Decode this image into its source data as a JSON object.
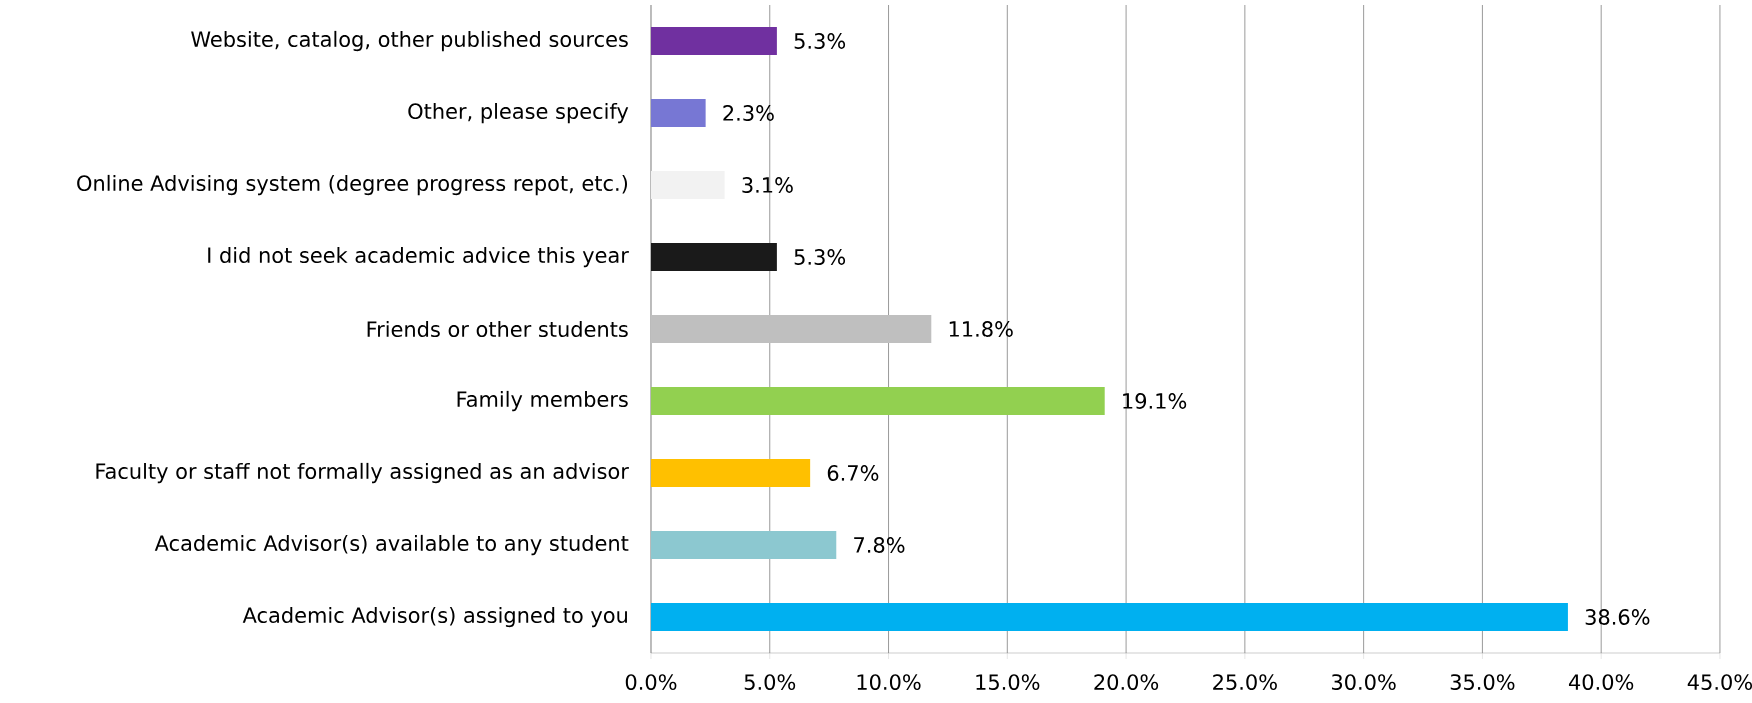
{
  "chart_data": {
    "type": "bar",
    "orientation": "horizontal",
    "categories": [
      "Website, catalog, other published sources",
      "Other, please specify",
      "Online Advising system (degree progress repot, etc.)",
      "I did not seek academic advice this year",
      "Friends or other students",
      "Family members",
      "Faculty or staff not formally assigned as an advisor",
      "Academic Advisor(s) available to any student",
      "Academic Advisor(s) assigned to you"
    ],
    "values": [
      5.3,
      2.3,
      3.1,
      5.3,
      11.8,
      19.1,
      6.7,
      7.8,
      38.6
    ],
    "value_labels": [
      "5.3%",
      "2.3%",
      "3.1%",
      "5.3%",
      "11.8%",
      "19.1%",
      "6.7%",
      "7.8%",
      "38.6%"
    ],
    "colors": [
      "#7030a0",
      "#7777d4",
      "#f2f2f2",
      "#1a1a1a",
      "#bfbfbf",
      "#92d050",
      "#ffc000",
      "#8cc8d0",
      "#00b0f0"
    ],
    "xlim": [
      0,
      45
    ],
    "xticks": [
      {
        "value": 0,
        "label": "0.0%"
      },
      {
        "value": 5,
        "label": "5.0%"
      },
      {
        "value": 10,
        "label": "10.0%"
      },
      {
        "value": 15,
        "label": "15.0%"
      },
      {
        "value": 20,
        "label": "20.0%"
      },
      {
        "value": 25,
        "label": "25.0%"
      },
      {
        "value": 30,
        "label": "30.0%"
      },
      {
        "value": 35,
        "label": "35.0%"
      },
      {
        "value": 40,
        "label": "40.0%"
      },
      {
        "value": 45,
        "label": "45.0%"
      }
    ],
    "grid": "x"
  }
}
